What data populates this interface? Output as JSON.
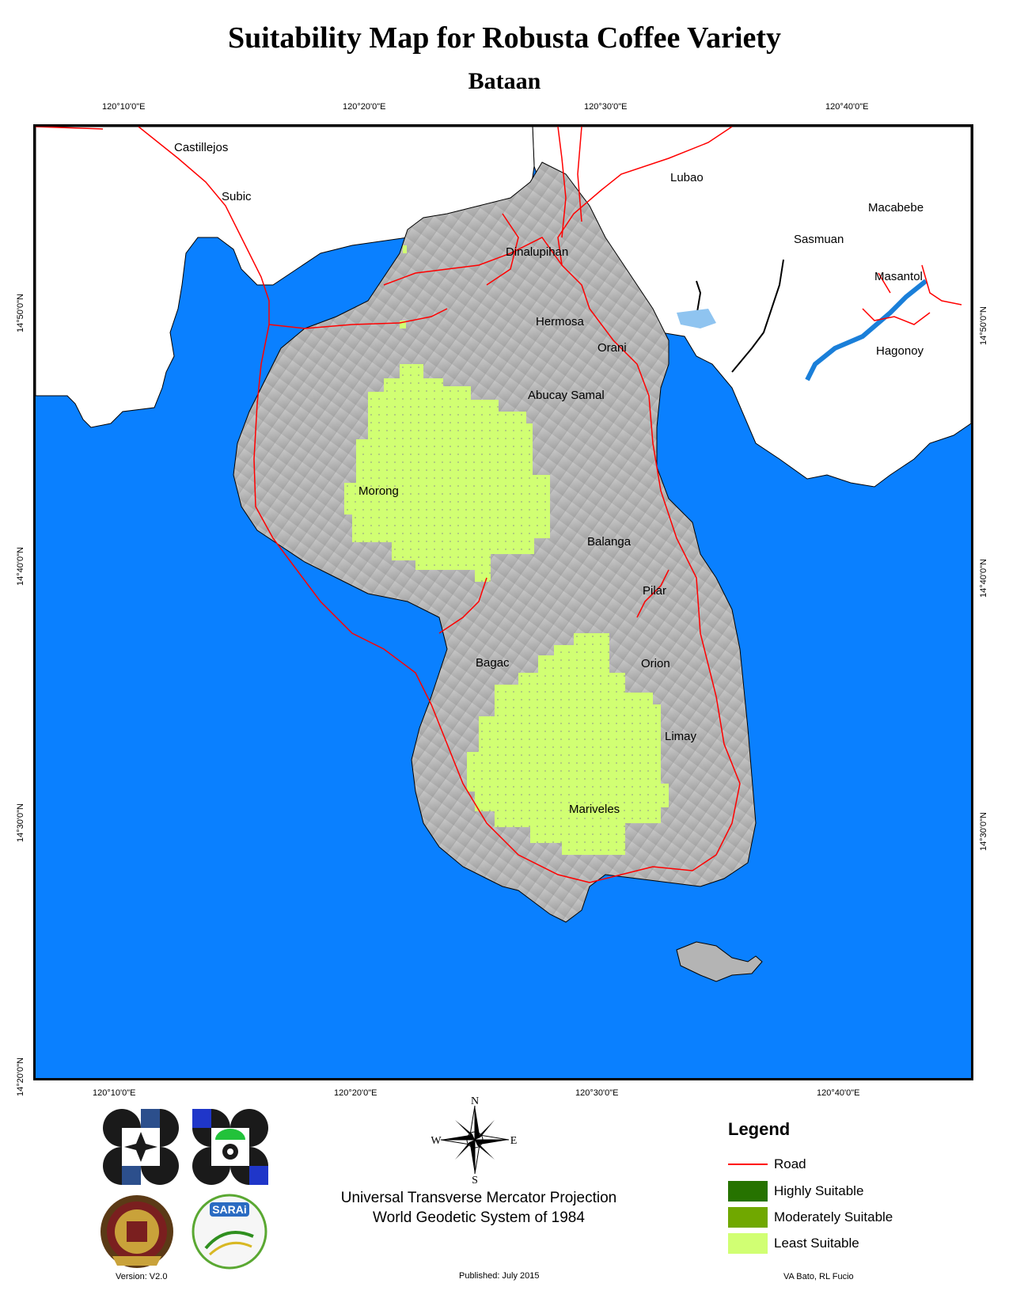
{
  "title": "Suitability Map for Robusta Coffee Variety",
  "subtitle": "Bataan",
  "top_ticks": [
    "120°10'0\"E",
    "120°20'0\"E",
    "120°30'0\"E",
    "120°40'0\"E"
  ],
  "bottom_ticks": [
    "120°10'0\"E",
    "120°20'0\"E",
    "120°30'0\"E",
    "120°40'0\"E"
  ],
  "left_ticks": [
    "14°50'0\"N",
    "14°40'0\"N",
    "14°30'0\"N",
    "14°20'0\"N"
  ],
  "right_ticks": [
    "14°50'0\"N",
    "14°40'0\"N",
    "14°30'0\"N"
  ],
  "places": {
    "castillejos": "Castillejos",
    "subic": "Subic",
    "lubao": "Lubao",
    "macabebe": "Macabebe",
    "sasmuan": "Sasmuan",
    "dinalupihan": "Dinalupihan",
    "masantol": "Masantol",
    "hermosa": "Hermosa",
    "orani": "Orani",
    "hagonoy": "Hagonoy",
    "abucay_samal": "Abucay Samal",
    "morong": "Morong",
    "balanga": "Balanga",
    "pilar": "Pilar",
    "bagac": "Bagac",
    "orion": "Orion",
    "limay": "Limay",
    "mariveles": "Mariveles"
  },
  "compass": {
    "n": "N",
    "s": "S",
    "e": "E",
    "w": "W"
  },
  "legend": {
    "title": "Legend",
    "items": [
      {
        "label": "Road",
        "color": "#ff0000",
        "type": "line"
      },
      {
        "label": "Highly Suitable",
        "color": "#267300",
        "type": "fill"
      },
      {
        "label": "Moderately Suitable",
        "color": "#70a800",
        "type": "fill"
      },
      {
        "label": "Least Suitable",
        "color": "#d1ff73",
        "type": "fill"
      }
    ]
  },
  "projection": {
    "line1": "Universal Transverse Mercator Projection",
    "line2": "World Geodetic System of 1984"
  },
  "version": "Version: V2.0",
  "published": "Published: July 2015",
  "authors": "VA Bato, RL Fucio",
  "colors": {
    "water": "#0a80ff",
    "land_bataan": "#b4b4b4",
    "land_other": "#ffffff",
    "road": "#ff0000",
    "least_suitable": "#d1ff73"
  }
}
